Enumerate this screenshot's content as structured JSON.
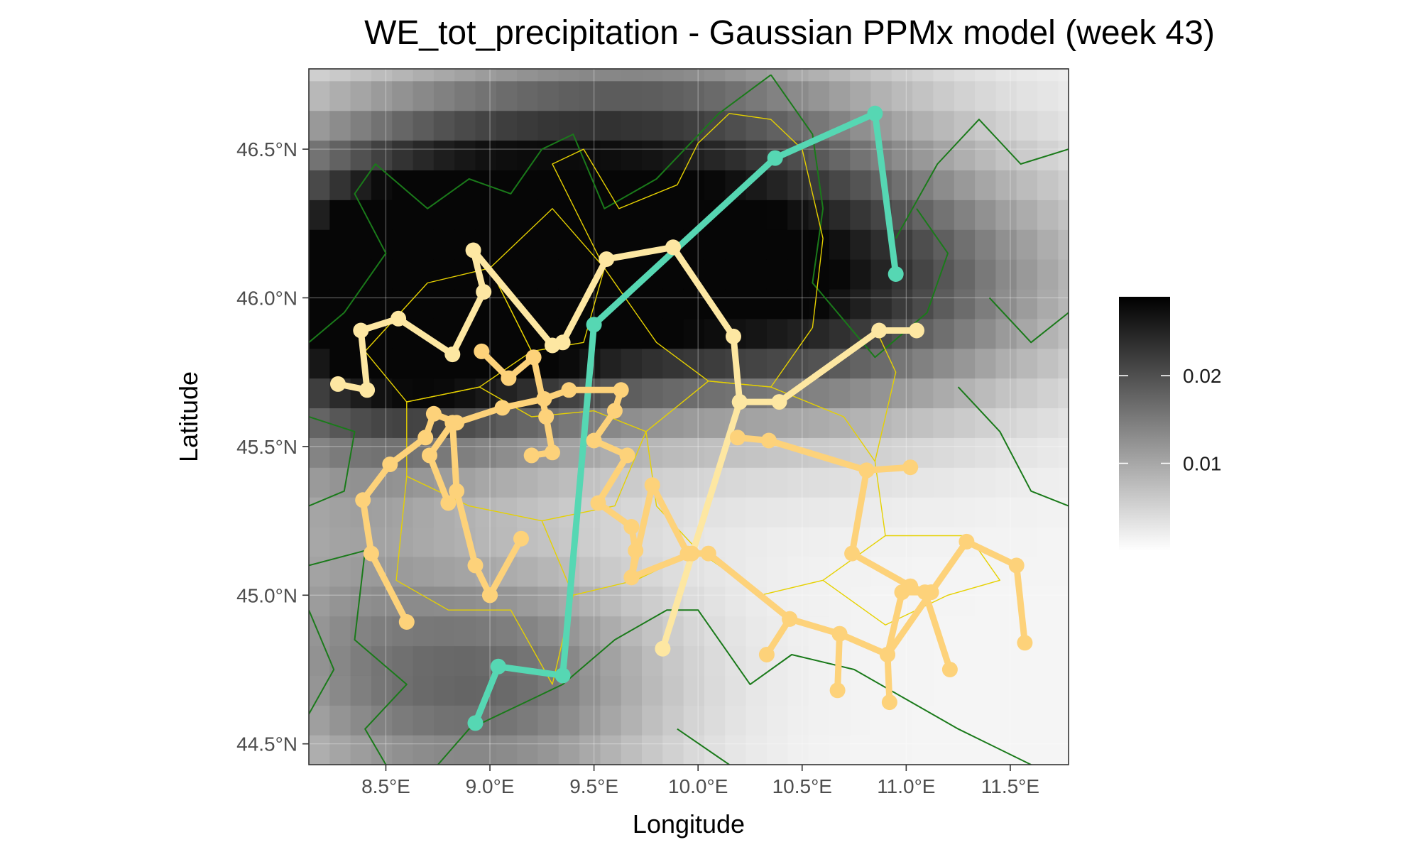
{
  "chart_data": {
    "type": "map",
    "title": "WE_tot_precipitation - Gaussian PPMx model (week 43)",
    "xlabel": "Longitude",
    "ylabel": "Latitude",
    "xlim": [
      8.13,
      11.78
    ],
    "ylim": [
      44.43,
      46.77
    ],
    "x_ticks": [
      {
        "value": 8.5,
        "label": "8.5°E"
      },
      {
        "value": 9.0,
        "label": "9.0°E"
      },
      {
        "value": 9.5,
        "label": "9.5°E"
      },
      {
        "value": 10.0,
        "label": "10.0°E"
      },
      {
        "value": 10.5,
        "label": "10.5°E"
      },
      {
        "value": 11.0,
        "label": "11.0°E"
      },
      {
        "value": 11.5,
        "label": "11.5°E"
      }
    ],
    "y_ticks": [
      {
        "value": 44.5,
        "label": "44.5°N"
      },
      {
        "value": 45.0,
        "label": "45.0°N"
      },
      {
        "value": 45.5,
        "label": "45.5°N"
      },
      {
        "value": 46.0,
        "label": "46.0°N"
      },
      {
        "value": 46.5,
        "label": "46.5°N"
      }
    ],
    "colorbar": {
      "range": [
        0.0,
        0.029
      ],
      "ticks": [
        {
          "value": 0.01,
          "label": "0.01"
        },
        {
          "value": 0.02,
          "label": "0.02"
        }
      ],
      "low_color": "#ffffff",
      "high_color": "#000000"
    },
    "background_field": {
      "description": "precipitation intensity raster, darker = higher",
      "grid_step_lon": 0.1,
      "grid_step_lat": 0.1,
      "centers": [
        {
          "lon": 8.6,
          "lat": 46.0,
          "value": 0.028,
          "sd_lon": 0.6,
          "sd_lat": 0.35
        },
        {
          "lon": 9.3,
          "lat": 46.1,
          "value": 0.02,
          "sd_lon": 0.9,
          "sd_lat": 0.35
        },
        {
          "lon": 10.6,
          "lat": 46.05,
          "value": 0.021,
          "sd_lon": 0.8,
          "sd_lat": 0.3
        },
        {
          "lon": 9.0,
          "lat": 44.7,
          "value": 0.016,
          "sd_lon": 0.6,
          "sd_lat": 0.3
        },
        {
          "lon": 9.8,
          "lat": 46.6,
          "value": 0.012,
          "sd_lon": 0.8,
          "sd_lat": 0.25
        },
        {
          "lon": 8.2,
          "lat": 45.0,
          "value": 0.006,
          "sd_lon": 0.4,
          "sd_lat": 0.5
        }
      ]
    },
    "clusters": [
      {
        "color": "#56d7b3",
        "paths": [
          [
            [
              8.93,
              44.57
            ],
            [
              9.04,
              44.76
            ],
            [
              9.35,
              44.73
            ],
            [
              9.5,
              45.91
            ],
            [
              10.37,
              46.47
            ],
            [
              10.85,
              46.62
            ],
            [
              10.95,
              46.08
            ]
          ]
        ]
      },
      {
        "color": "#fde7a2",
        "paths": [
          [
            [
              8.27,
              45.71
            ],
            [
              8.41,
              45.69
            ],
            [
              8.38,
              45.89
            ],
            [
              8.56,
              45.93
            ],
            [
              8.82,
              45.81
            ],
            [
              8.97,
              46.02
            ],
            [
              8.92,
              46.16
            ],
            [
              9.3,
              45.84
            ],
            [
              9.35,
              45.85
            ],
            [
              9.56,
              46.13
            ],
            [
              9.88,
              46.17
            ],
            [
              10.17,
              45.87
            ],
            [
              10.2,
              45.65
            ],
            [
              10.39,
              45.65
            ],
            [
              10.87,
              45.89
            ],
            [
              11.05,
              45.89
            ]
          ],
          [
            [
              10.2,
              45.65
            ],
            [
              9.83,
              44.82
            ]
          ]
        ]
      },
      {
        "color": "#fdd27a",
        "paths": [
          [
            [
              8.6,
              44.91
            ],
            [
              8.43,
              45.14
            ],
            [
              8.39,
              45.32
            ],
            [
              8.52,
              45.44
            ],
            [
              8.69,
              45.53
            ],
            [
              8.73,
              45.61
            ],
            [
              8.84,
              45.58
            ],
            [
              9.06,
              45.63
            ],
            [
              9.26,
              45.66
            ],
            [
              9.38,
              45.69
            ],
            [
              9.63,
              45.69
            ],
            [
              9.6,
              45.62
            ],
            [
              9.5,
              45.52
            ],
            [
              9.66,
              45.47
            ],
            [
              9.52,
              45.31
            ],
            [
              9.68,
              45.23
            ],
            [
              9.7,
              45.15
            ],
            [
              9.68,
              45.06
            ],
            [
              9.97,
              45.14
            ],
            [
              10.05,
              45.14
            ],
            [
              10.44,
              44.92
            ],
            [
              10.68,
              44.87
            ],
            [
              10.91,
              44.8
            ],
            [
              11.12,
              45.01
            ],
            [
              11.29,
              45.18
            ],
            [
              11.53,
              45.1
            ],
            [
              11.57,
              44.84
            ]
          ],
          [
            [
              9.0,
              45.0
            ],
            [
              8.93,
              45.1
            ],
            [
              8.84,
              45.35
            ],
            [
              8.82,
              45.58
            ],
            [
              8.71,
              45.47
            ],
            [
              8.8,
              45.31
            ]
          ],
          [
            [
              9.15,
              45.19
            ],
            [
              9.0,
              45.0
            ]
          ],
          [
            [
              8.96,
              45.82
            ],
            [
              9.09,
              45.73
            ],
            [
              9.21,
              45.8
            ],
            [
              9.27,
              45.6
            ],
            [
              9.3,
              45.48
            ],
            [
              9.2,
              45.47
            ]
          ],
          [
            [
              10.19,
              45.53
            ],
            [
              10.34,
              45.52
            ],
            [
              10.81,
              45.42
            ],
            [
              11.02,
              45.43
            ]
          ],
          [
            [
              10.81,
              45.42
            ],
            [
              10.74,
              45.14
            ],
            [
              11.02,
              45.03
            ],
            [
              11.09,
              45.01
            ],
            [
              11.21,
              44.75
            ]
          ],
          [
            [
              11.12,
              45.01
            ],
            [
              10.98,
              45.01
            ],
            [
              10.91,
              44.8
            ],
            [
              10.92,
              44.64
            ]
          ],
          [
            [
              10.68,
              44.87
            ],
            [
              10.67,
              44.68
            ]
          ],
          [
            [
              10.44,
              44.92
            ],
            [
              10.33,
              44.8
            ]
          ],
          [
            [
              9.68,
              45.06
            ],
            [
              9.78,
              45.37
            ],
            [
              9.95,
              45.14
            ]
          ]
        ]
      }
    ],
    "regional_borders": {
      "color": "#e6d100",
      "paths": [
        [
          [
            9.55,
            46.1
          ],
          [
            9.3,
            46.45
          ],
          [
            9.45,
            46.5
          ],
          [
            9.62,
            46.3
          ],
          [
            9.9,
            46.38
          ],
          [
            10.0,
            46.52
          ],
          [
            10.15,
            46.62
          ],
          [
            10.35,
            46.6
          ],
          [
            10.5,
            46.5
          ],
          [
            10.6,
            46.2
          ],
          [
            10.55,
            45.9
          ],
          [
            10.35,
            45.7
          ],
          [
            10.05,
            45.72
          ],
          [
            9.8,
            45.85
          ],
          [
            9.55,
            46.1
          ]
        ],
        [
          [
            9.0,
            46.1
          ],
          [
            9.3,
            46.3
          ],
          [
            9.55,
            46.1
          ],
          [
            9.45,
            45.85
          ],
          [
            9.2,
            45.82
          ],
          [
            9.0,
            46.1
          ]
        ],
        [
          [
            8.4,
            45.82
          ],
          [
            8.7,
            46.05
          ],
          [
            9.0,
            46.1
          ],
          [
            9.2,
            45.82
          ],
          [
            8.95,
            45.7
          ],
          [
            8.6,
            45.65
          ],
          [
            8.4,
            45.82
          ]
        ],
        [
          [
            8.6,
            45.65
          ],
          [
            8.95,
            45.7
          ],
          [
            9.2,
            45.6
          ],
          [
            9.5,
            45.62
          ],
          [
            9.75,
            45.55
          ],
          [
            9.6,
            45.3
          ],
          [
            9.25,
            45.25
          ],
          [
            8.9,
            45.3
          ],
          [
            8.6,
            45.4
          ],
          [
            8.6,
            45.65
          ]
        ],
        [
          [
            9.75,
            45.55
          ],
          [
            10.05,
            45.72
          ],
          [
            10.35,
            45.7
          ],
          [
            10.7,
            45.6
          ],
          [
            10.85,
            45.45
          ],
          [
            10.9,
            45.2
          ],
          [
            10.6,
            45.05
          ],
          [
            10.3,
            45.0
          ],
          [
            10.0,
            45.15
          ],
          [
            9.8,
            45.3
          ],
          [
            9.75,
            45.55
          ]
        ],
        [
          [
            8.6,
            45.4
          ],
          [
            8.55,
            45.05
          ],
          [
            8.8,
            44.95
          ],
          [
            9.1,
            44.95
          ],
          [
            9.3,
            44.7
          ],
          [
            9.4,
            45.0
          ],
          [
            9.25,
            45.25
          ]
        ],
        [
          [
            9.4,
            45.0
          ],
          [
            9.7,
            45.05
          ],
          [
            10.0,
            45.15
          ]
        ],
        [
          [
            10.6,
            45.05
          ],
          [
            10.9,
            44.9
          ],
          [
            11.2,
            45.0
          ],
          [
            11.45,
            45.05
          ],
          [
            11.3,
            45.2
          ],
          [
            10.9,
            45.2
          ]
        ],
        [
          [
            10.85,
            45.45
          ],
          [
            10.95,
            45.75
          ],
          [
            10.85,
            45.9
          ]
        ]
      ]
    },
    "country_borders": {
      "color": "#1a7a1a",
      "paths": [
        [
          [
            8.13,
            45.85
          ],
          [
            8.3,
            45.95
          ],
          [
            8.5,
            46.15
          ],
          [
            8.35,
            46.35
          ],
          [
            8.45,
            46.45
          ],
          [
            8.7,
            46.3
          ],
          [
            8.9,
            46.4
          ],
          [
            9.1,
            46.35
          ],
          [
            9.25,
            46.5
          ],
          [
            9.4,
            46.55
          ],
          [
            9.55,
            46.3
          ],
          [
            9.8,
            46.4
          ],
          [
            10.1,
            46.62
          ],
          [
            10.35,
            46.75
          ]
        ],
        [
          [
            10.35,
            46.75
          ],
          [
            10.55,
            46.55
          ],
          [
            10.6,
            46.3
          ],
          [
            10.55,
            46.05
          ],
          [
            10.85,
            45.8
          ],
          [
            11.1,
            45.95
          ],
          [
            11.2,
            46.15
          ],
          [
            11.05,
            46.3
          ]
        ],
        [
          [
            10.95,
            46.2
          ],
          [
            11.15,
            46.45
          ],
          [
            11.35,
            46.6
          ],
          [
            11.55,
            46.45
          ],
          [
            11.78,
            46.5
          ]
        ],
        [
          [
            11.4,
            46.0
          ],
          [
            11.6,
            45.85
          ],
          [
            11.78,
            45.95
          ]
        ],
        [
          [
            11.25,
            45.7
          ],
          [
            11.45,
            45.55
          ],
          [
            11.6,
            45.35
          ],
          [
            11.78,
            45.3
          ]
        ],
        [
          [
            8.13,
            45.6
          ],
          [
            8.35,
            45.55
          ],
          [
            8.3,
            45.35
          ],
          [
            8.13,
            45.3
          ]
        ],
        [
          [
            8.13,
            45.1
          ],
          [
            8.4,
            45.15
          ],
          [
            8.35,
            44.85
          ],
          [
            8.6,
            44.7
          ],
          [
            8.4,
            44.55
          ],
          [
            8.5,
            44.43
          ]
        ],
        [
          [
            8.75,
            44.43
          ],
          [
            8.9,
            44.55
          ],
          [
            9.2,
            44.65
          ],
          [
            9.35,
            44.7
          ],
          [
            9.6,
            44.85
          ],
          [
            9.85,
            44.95
          ],
          [
            10.0,
            44.95
          ],
          [
            10.25,
            44.7
          ],
          [
            10.45,
            44.8
          ],
          [
            10.75,
            44.75
          ],
          [
            11.0,
            44.65
          ],
          [
            11.25,
            44.55
          ],
          [
            11.6,
            44.43
          ]
        ],
        [
          [
            9.9,
            44.55
          ],
          [
            10.15,
            44.43
          ]
        ],
        [
          [
            8.13,
            44.95
          ],
          [
            8.25,
            44.75
          ],
          [
            8.13,
            44.6
          ]
        ]
      ]
    }
  }
}
